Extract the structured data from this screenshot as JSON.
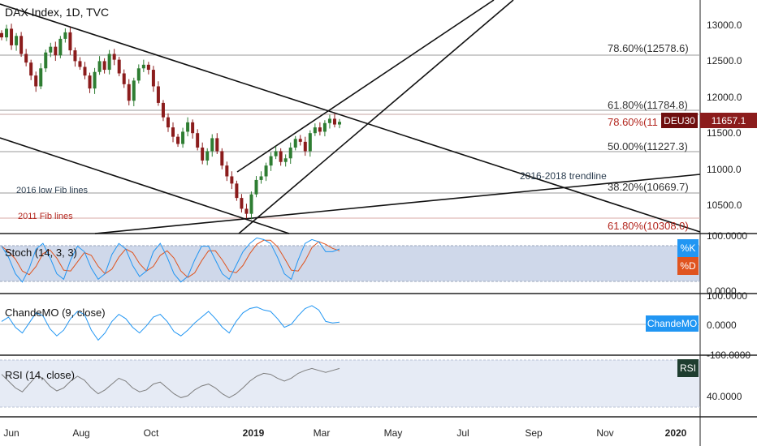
{
  "header": {
    "title": "DAX Index, 1D, TVC"
  },
  "price_axis": {
    "ticks": [
      "13000.0",
      "12500.0",
      "12000.0",
      "11500.0",
      "11000.0",
      "10500.0"
    ],
    "current_label": "DEU30",
    "current_value": "11657.1",
    "colors": {
      "badge": "#6f0f0f",
      "value": "#8b1c1c"
    }
  },
  "fib_levels": [
    {
      "label": "78.60%(12578.6)",
      "color": "#333333"
    },
    {
      "label": "61.80%(11784.8)",
      "color": "#333333"
    },
    {
      "label": "78.60%(11",
      "color": "#b3261e"
    },
    {
      "label": "50.00%(11227.3)",
      "color": "#333333"
    },
    {
      "label": "38.20%(10669.7)",
      "color": "#333333"
    },
    {
      "label": "61.80%(10308.0)",
      "color": "#b3261e"
    }
  ],
  "annotations": {
    "trendline": "2016-2018 trendline",
    "fib_2016": "2016 low Fib lines",
    "fib_2011": "2011 Fib lines"
  },
  "stoch": {
    "title": "Stoch (14, 3, 3)",
    "axis_top": "100.0000",
    "axis_bottom": "0.0000",
    "legend_k": "%K",
    "legend_d": "%D",
    "colors": {
      "k": "#2196f3",
      "d": "#e0541f"
    }
  },
  "cmo": {
    "title": "ChandeMO (9, close)",
    "axis_top": "100.0000",
    "axis_mid": "0.0000",
    "axis_bottom": "-100.0000",
    "badge": "ChandeMO",
    "color": "#2196f3"
  },
  "rsi": {
    "title": "RSI (14, close)",
    "axis_value": "40.0000",
    "badge": "RSI",
    "color": "#7e7e7e"
  },
  "time_axis": [
    "Jun",
    "Aug",
    "Oct",
    "2019",
    "Mar",
    "May",
    "Jul",
    "Sep",
    "Nov",
    "2020"
  ],
  "chart_data": {
    "type": "candlestick",
    "title": "DAX Index, 1D, TVC",
    "ylim": [
      10200,
      13200
    ],
    "x_labels": [
      "Jun",
      "Aug",
      "Oct",
      "2019",
      "Mar",
      "May",
      "Jul",
      "Sep",
      "Nov",
      "2020"
    ],
    "closes": [
      12830,
      12950,
      12720,
      12850,
      12600,
      12480,
      12300,
      12150,
      12400,
      12620,
      12700,
      12580,
      12810,
      12900,
      12650,
      12500,
      12420,
      12300,
      12120,
      12350,
      12500,
      12380,
      12600,
      12520,
      12330,
      12180,
      11950,
      12230,
      12400,
      12450,
      12380,
      12150,
      11920,
      11720,
      11580,
      11450,
      11350,
      11520,
      11650,
      11500,
      11300,
      11120,
      11250,
      11430,
      11250,
      11050,
      10900,
      10800,
      10600,
      10450,
      10380,
      10650,
      10850,
      10900,
      11050,
      11180,
      11250,
      11100,
      11150,
      11300,
      11420,
      11380,
      11250,
      11500,
      11580,
      11520,
      11640,
      11700,
      11620,
      11657
    ],
    "fib_levels": [
      {
        "label": "78.60%",
        "value": 12578.6
      },
      {
        "label": "61.80%",
        "value": 11784.8
      },
      {
        "label": "50.00%",
        "value": 11227.3
      },
      {
        "label": "38.20%",
        "value": 10669.7
      },
      {
        "label": "61.80%",
        "value": 10308.0
      }
    ],
    "last_value": 11657.1,
    "stoch_k": [
      80,
      60,
      30,
      15,
      40,
      75,
      85,
      60,
      30,
      20,
      55,
      80,
      70,
      40,
      20,
      30,
      65,
      85,
      75,
      45,
      25,
      35,
      70,
      85,
      60,
      30,
      15,
      25,
      55,
      80,
      80,
      55,
      30,
      20,
      45,
      70,
      85,
      95,
      92,
      85,
      60,
      30,
      20,
      55,
      85,
      92,
      88,
      70,
      70,
      75
    ],
    "cmo": [
      10,
      25,
      -10,
      -30,
      5,
      40,
      30,
      -15,
      -40,
      -20,
      20,
      45,
      35,
      -20,
      -55,
      -30,
      10,
      35,
      20,
      -10,
      -30,
      -5,
      25,
      35,
      10,
      -25,
      -40,
      -20,
      5,
      25,
      45,
      20,
      -10,
      -30,
      10,
      40,
      55,
      60,
      50,
      45,
      20,
      -10,
      0,
      30,
      55,
      65,
      50,
      10,
      5,
      8
    ],
    "rsi": [
      62,
      55,
      48,
      44,
      52,
      60,
      58,
      50,
      45,
      48,
      55,
      60,
      56,
      48,
      42,
      46,
      52,
      58,
      55,
      48,
      44,
      46,
      52,
      54,
      48,
      42,
      38,
      40,
      46,
      50,
      52,
      48,
      42,
      38,
      42,
      48,
      55,
      60,
      63,
      62,
      58,
      55,
      58,
      63,
      66,
      68,
      66,
      64,
      66,
      68
    ]
  }
}
